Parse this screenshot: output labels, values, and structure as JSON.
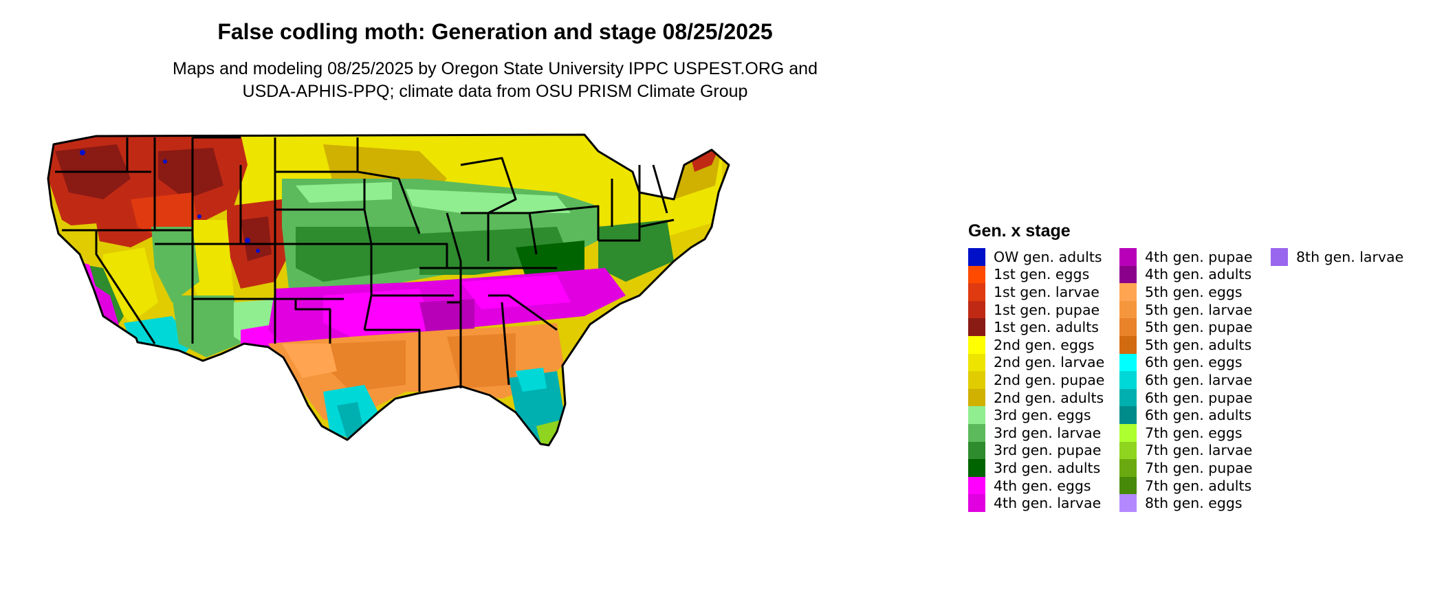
{
  "title": "False codling moth: Generation and stage 08/25/2025",
  "subtitle_line1": "Maps and modeling 08/25/2025 by Oregon State University IPPC USPEST.ORG and",
  "subtitle_line2": "USDA-APHIS-PPQ; climate data from OSU PRISM Climate Group",
  "legend": {
    "title": "Gen. x stage",
    "columns": [
      [
        {
          "label": "OW gen. adults",
          "color": "#0010c8"
        },
        {
          "label": "1st gen. eggs",
          "color": "#ff4a00"
        },
        {
          "label": "1st gen. larvae",
          "color": "#e03a10"
        },
        {
          "label": "1st gen. pupae",
          "color": "#c02a14"
        },
        {
          "label": "1st gen. adults",
          "color": "#8a1a14"
        },
        {
          "label": "2nd gen. eggs",
          "color": "#ffff00"
        },
        {
          "label": "2nd gen. larvae",
          "color": "#ede400"
        },
        {
          "label": "2nd gen. pupae",
          "color": "#e0cc00"
        },
        {
          "label": "2nd gen. adults",
          "color": "#d0b000"
        },
        {
          "label": "3rd gen. eggs",
          "color": "#90ee90"
        },
        {
          "label": "3rd gen. larvae",
          "color": "#5cba5c"
        },
        {
          "label": "3rd gen. pupae",
          "color": "#2e8b2e"
        },
        {
          "label": "3rd gen. adults",
          "color": "#006400"
        },
        {
          "label": "4th gen. eggs",
          "color": "#ff00ff"
        },
        {
          "label": "4th gen. larvae",
          "color": "#e000e0"
        }
      ],
      [
        {
          "label": "4th gen. pupae",
          "color": "#b800b8"
        },
        {
          "label": "4th gen. adults",
          "color": "#8b008b"
        },
        {
          "label": "5th gen. eggs",
          "color": "#ffa552"
        },
        {
          "label": "5th gen. larvae",
          "color": "#f5963c"
        },
        {
          "label": "5th gen. pupae",
          "color": "#e8832a"
        },
        {
          "label": "5th gen. adults",
          "color": "#d26a10"
        },
        {
          "label": "6th gen. eggs",
          "color": "#00ffff"
        },
        {
          "label": "6th gen. larvae",
          "color": "#00d8d8"
        },
        {
          "label": "6th gen. pupae",
          "color": "#00b0b0"
        },
        {
          "label": "6th gen. adults",
          "color": "#008b8b"
        },
        {
          "label": "7th gen. eggs",
          "color": "#adff2f"
        },
        {
          "label": "7th gen. larvae",
          "color": "#8fd41e"
        },
        {
          "label": "7th gen. pupae",
          "color": "#6aaa10"
        },
        {
          "label": "7th gen. adults",
          "color": "#478a0a"
        },
        {
          "label": "8th gen. eggs",
          "color": "#b388ff"
        }
      ],
      [
        {
          "label": "8th gen. larvae",
          "color": "#9966ee"
        }
      ]
    ]
  }
}
